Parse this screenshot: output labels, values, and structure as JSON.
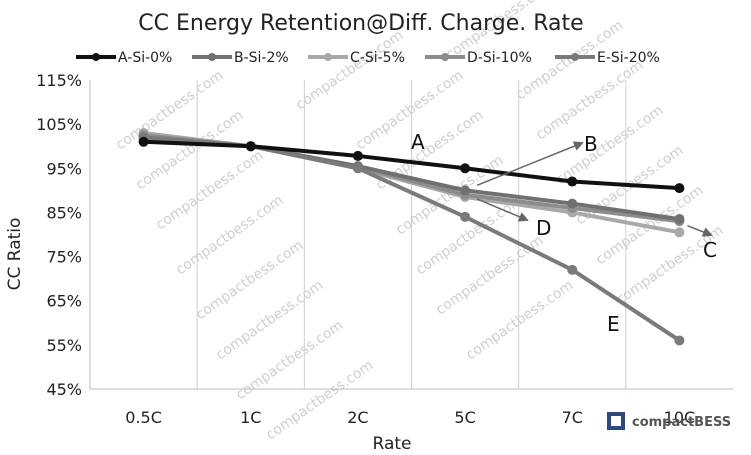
{
  "chart_data": {
    "type": "line",
    "title": "CC Energy Retention@Diff. Charge. Rate",
    "xlabel": "Rate",
    "ylabel": "CC Ratio",
    "categories": [
      "0.5C",
      "1C",
      "2C",
      "5C",
      "7C",
      "10C"
    ],
    "ylim": [
      45,
      115
    ],
    "yticks": [
      "45%",
      "55%",
      "65%",
      "75%",
      "85%",
      "95%",
      "105%",
      "115%"
    ],
    "grid": "vertical",
    "legend_position": "top",
    "series": [
      {
        "name": "A-Si-0%",
        "color": "#111111",
        "values": [
          101,
          100,
          97.8,
          95,
          92,
          90.5
        ]
      },
      {
        "name": "B-Si-2%",
        "color": "#707070",
        "values": [
          102,
          100,
          95.5,
          90,
          87,
          83.5
        ]
      },
      {
        "name": "C-Si-5%",
        "color": "#a8a8a8",
        "values": [
          103,
          100,
          95,
          88.5,
          85,
          80.5
        ]
      },
      {
        "name": "D-Si-10%",
        "color": "#8c8c8c",
        "values": [
          102.5,
          100,
          95.3,
          89,
          86,
          83
        ]
      },
      {
        "name": "E-Si-20%",
        "color": "#7a7a7a",
        "values": [
          102,
          100,
          95,
          84,
          72,
          56
        ]
      }
    ],
    "annotations": [
      "A",
      "B",
      "C",
      "D",
      "E"
    ],
    "watermark": "compactbess.com",
    "logo_text": "compactBESS"
  }
}
